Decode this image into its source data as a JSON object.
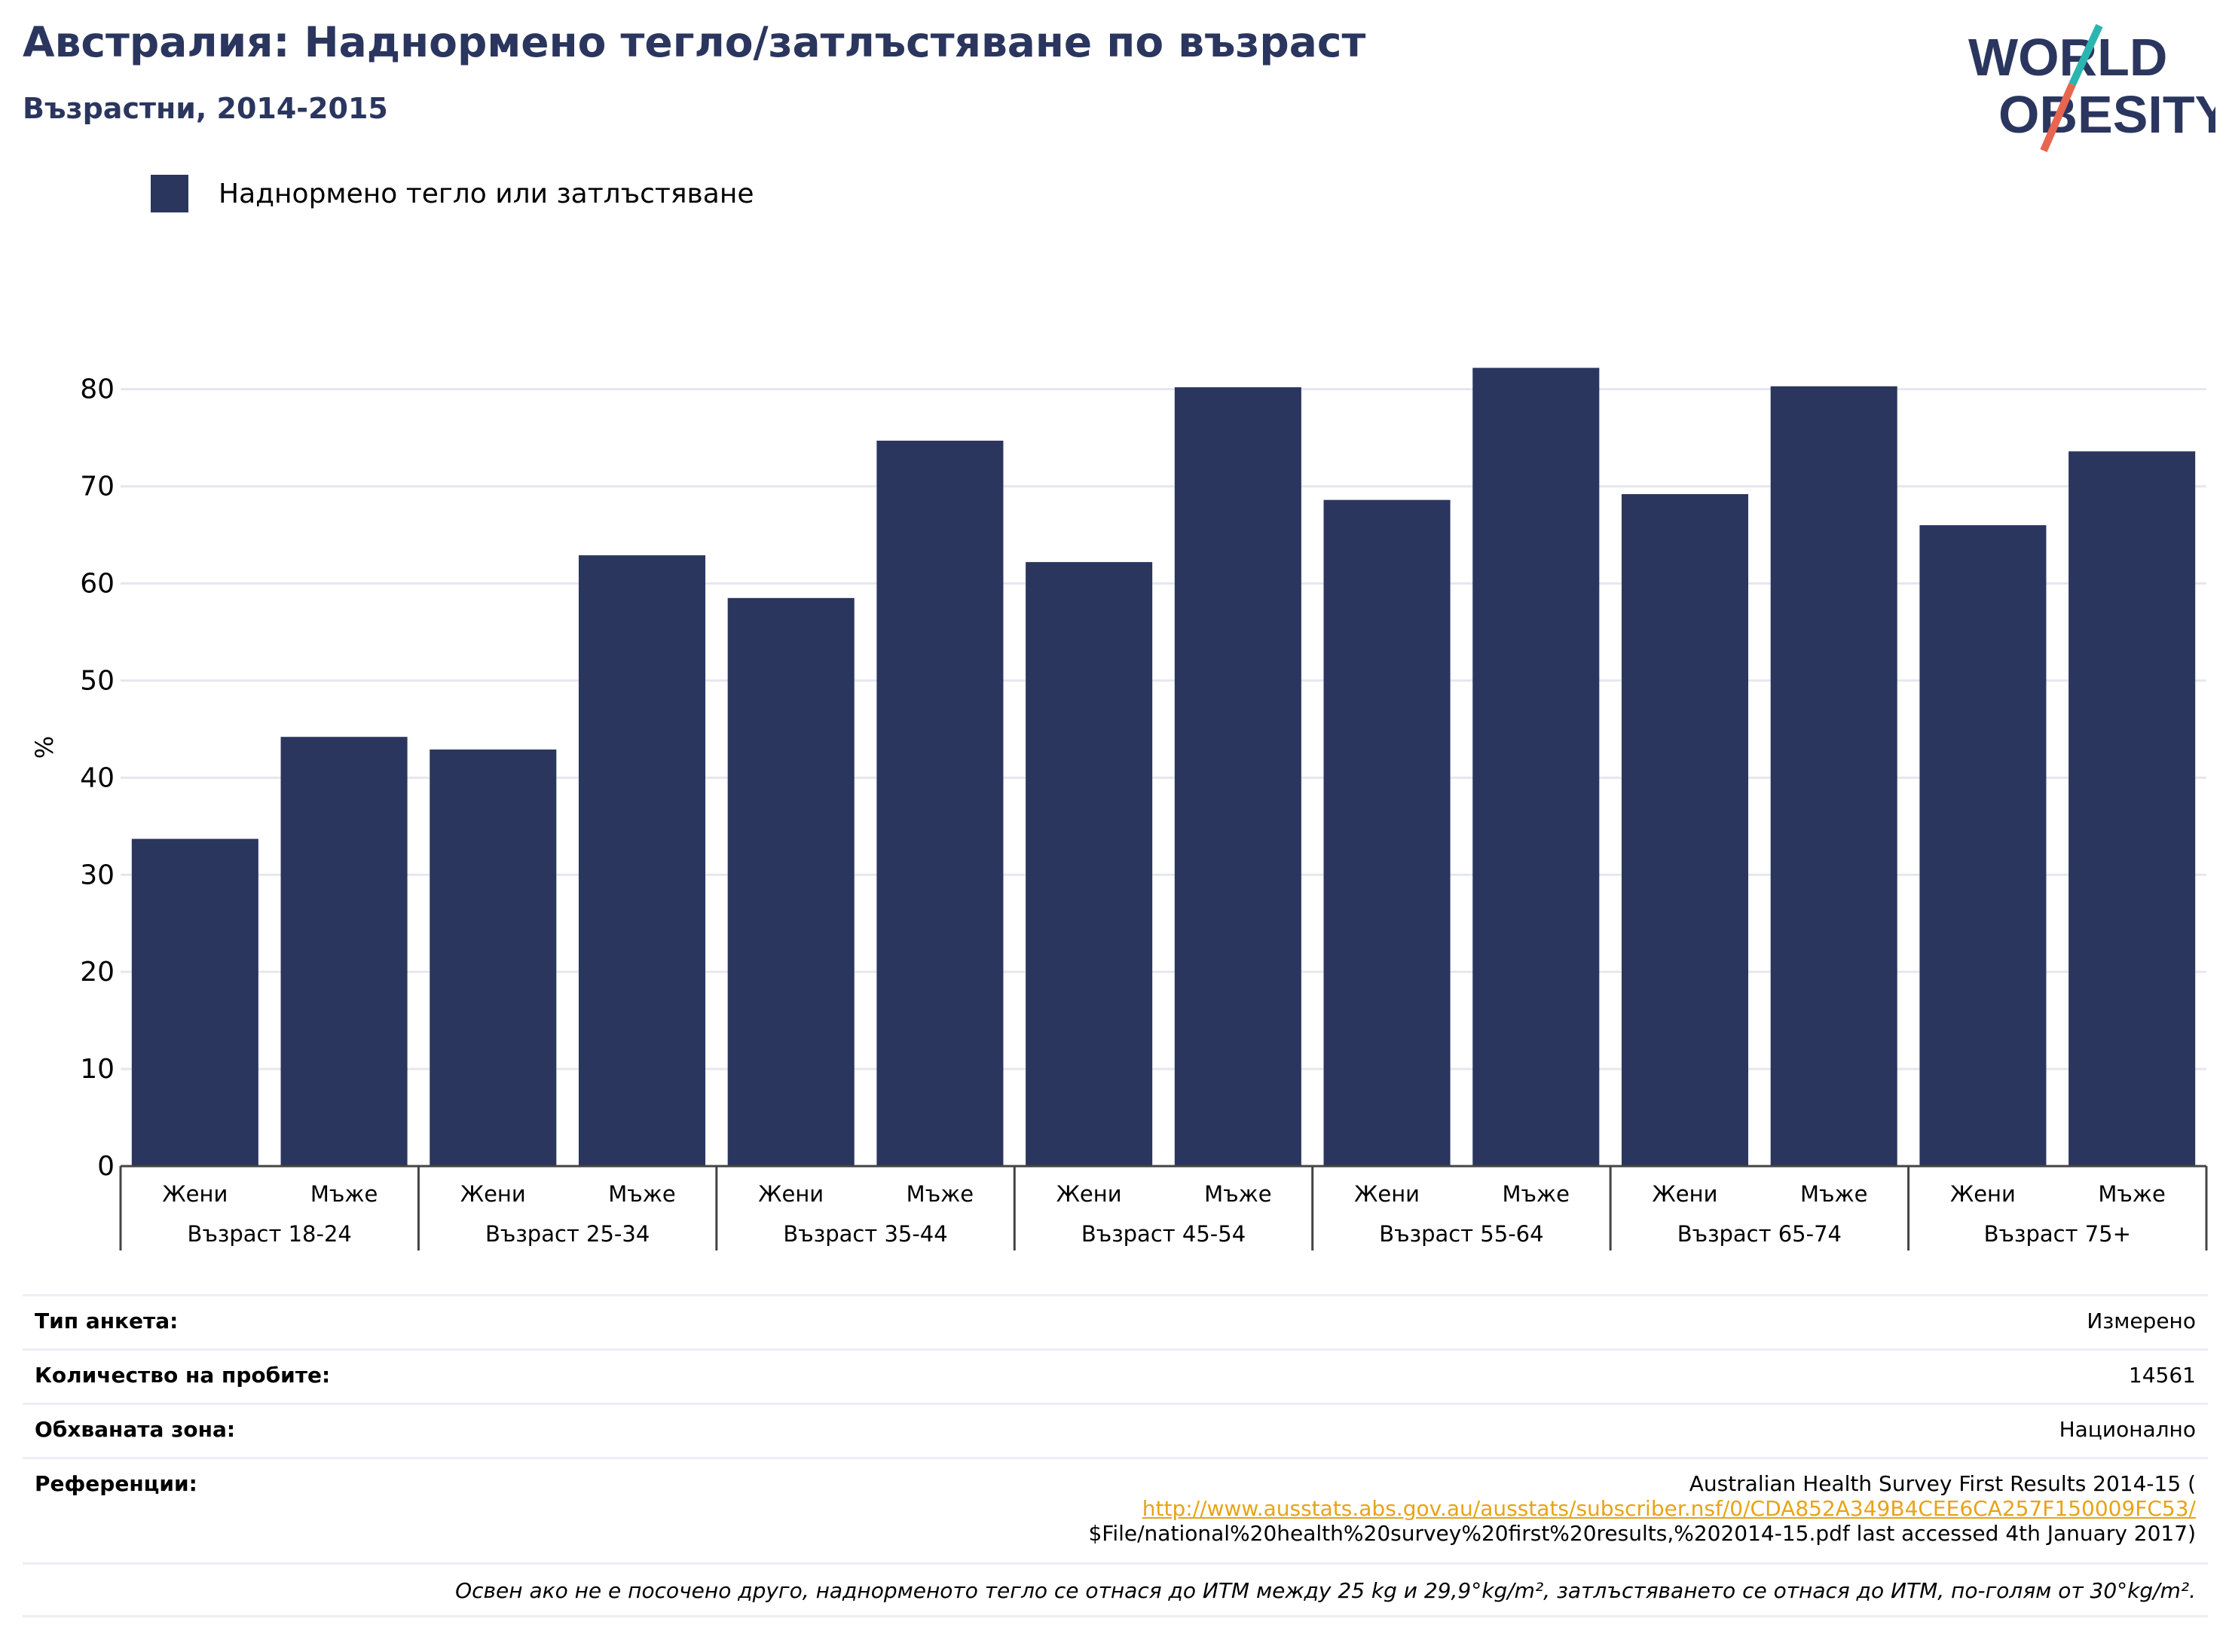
{
  "header": {
    "title": "Австралия: Наднормено тегло/затлъстяване по възраст",
    "subtitle": "Възрастни, 2014-2015"
  },
  "logo": {
    "line1": "WORLD",
    "line2": "OBESITY",
    "colors": {
      "text": "#2b365f",
      "accent_top": "#2bb5b0",
      "accent_bottom": "#e8654f"
    }
  },
  "legend": {
    "label": "Наднормено тегло или затлъстяване",
    "color": "#2b365f"
  },
  "chart_data": {
    "type": "bar",
    "ylabel": "%",
    "ylim": [
      0,
      83
    ],
    "yticks": [
      0,
      10,
      20,
      30,
      40,
      50,
      60,
      70,
      80
    ],
    "grid": true,
    "legend_position": "top-left",
    "bar_color": "#2b365f",
    "groups": [
      {
        "label": "Възраст 18-24",
        "bars": [
          {
            "sex": "Жени",
            "value": 33.7
          },
          {
            "sex": "Мъже",
            "value": 44.2
          }
        ]
      },
      {
        "label": "Възраст 25-34",
        "bars": [
          {
            "sex": "Жени",
            "value": 42.9
          },
          {
            "sex": "Мъже",
            "value": 62.9
          }
        ]
      },
      {
        "label": "Възраст 35-44",
        "bars": [
          {
            "sex": "Жени",
            "value": 58.5
          },
          {
            "sex": "Мъже",
            "value": 74.7
          }
        ]
      },
      {
        "label": "Възраст 45-54",
        "bars": [
          {
            "sex": "Жени",
            "value": 62.2
          },
          {
            "sex": "Мъже",
            "value": 80.2
          }
        ]
      },
      {
        "label": "Възраст 55-64",
        "bars": [
          {
            "sex": "Жени",
            "value": 68.6
          },
          {
            "sex": "Мъже",
            "value": 82.2
          }
        ]
      },
      {
        "label": "Възраст 65-74",
        "bars": [
          {
            "sex": "Жени",
            "value": 69.2
          },
          {
            "sex": "Мъже",
            "value": 80.3
          }
        ]
      },
      {
        "label": "Възраст 75+",
        "bars": [
          {
            "sex": "Жени",
            "value": 66.0
          },
          {
            "sex": "Мъже",
            "value": 73.6
          }
        ]
      }
    ]
  },
  "info": {
    "survey_type_label": "Тип анкета:",
    "survey_type_value": "Измерено",
    "sample_size_label": "Количество на пробите:",
    "sample_size_value": "14561",
    "area_label": "Обхваната зона:",
    "area_value": "Национално",
    "references_label": "Референции:",
    "references_line1": "Australian Health Survey First Results 2014-15 (",
    "references_link": "http://www.ausstats.abs.gov.au/ausstats/subscriber.nsf/0/CDA852A349B4CEE6CA257F150009FC53/",
    "references_line3": "$File/national%20health%20survey%20first%20results,%202014-15.pdf last accessed 4th January 2017)",
    "note": "Освен ако не е посочено друго, наднорменото тегло се отнася до ИТМ между 25 kg и 29,9°kg/m², затлъстяването се отнася до ИТМ, по-голям от 30°kg/m²."
  }
}
